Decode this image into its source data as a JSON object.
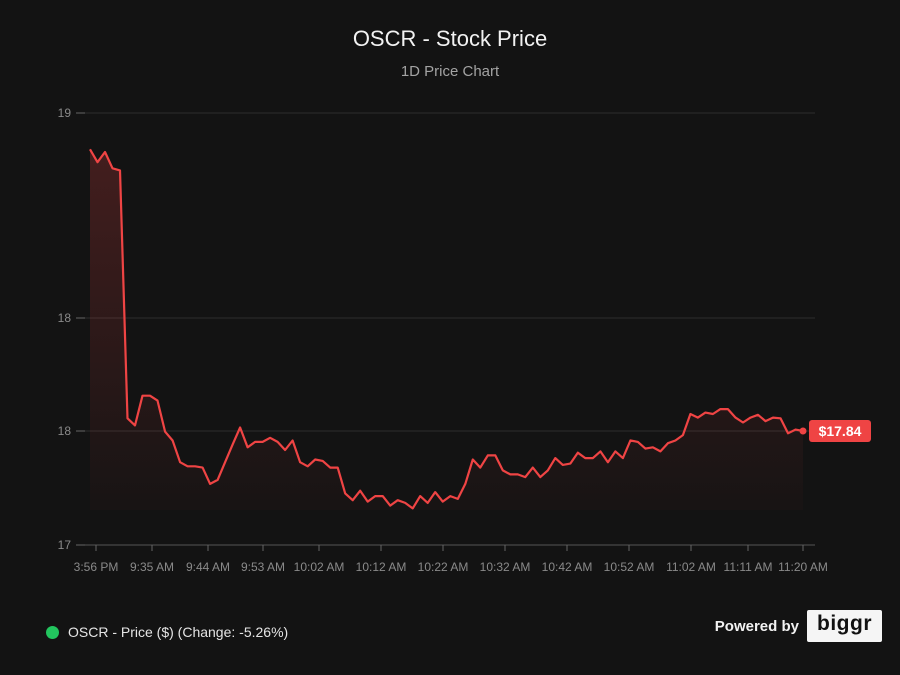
{
  "header": {
    "title": "OSCR - Stock Price",
    "subtitle": "1D Price Chart"
  },
  "chart_data": {
    "type": "area",
    "title": "OSCR - Stock Price",
    "subtitle": "1D Price Chart",
    "xlabel": "",
    "ylabel": "",
    "ylim": [
      17,
      19
    ],
    "grid": true,
    "y_ticks": [
      {
        "value": 19,
        "label": "19"
      },
      {
        "value": 18,
        "label": "18"
      },
      {
        "value": 17.84,
        "label": "18"
      },
      {
        "value": 17,
        "label": "17"
      }
    ],
    "x_tick_labels": [
      "3:56 PM",
      "9:35 AM",
      "9:44 AM",
      "9:53 AM",
      "10:02 AM",
      "10:12 AM",
      "10:22 AM",
      "10:32 AM",
      "10:42 AM",
      "10:52 AM",
      "11:02 AM",
      "11:11 AM",
      "11:20 AM"
    ],
    "series": [
      {
        "name": "OSCR - Price ($)",
        "color": "#ef4444",
        "values": [
          18.823,
          18.76,
          18.81,
          18.73,
          18.72,
          17.858,
          17.848,
          17.89,
          17.89,
          17.883,
          17.835,
          17.77,
          17.61,
          17.58,
          17.58,
          17.57,
          17.45,
          17.48,
          17.61,
          17.74,
          17.845,
          17.72,
          17.76,
          17.76,
          17.79,
          17.76,
          17.7,
          17.77,
          17.61,
          17.58,
          17.63,
          17.62,
          17.57,
          17.57,
          17.38,
          17.33,
          17.4,
          17.32,
          17.36,
          17.36,
          17.29,
          17.33,
          17.31,
          17.27,
          17.36,
          17.31,
          17.39,
          17.32,
          17.36,
          17.34,
          17.45,
          17.63,
          17.57,
          17.66,
          17.66,
          17.55,
          17.52,
          17.52,
          17.5,
          17.57,
          17.5,
          17.55,
          17.64,
          17.59,
          17.6,
          17.68,
          17.64,
          17.64,
          17.69,
          17.61,
          17.69,
          17.64,
          17.77,
          17.76,
          17.71,
          17.72,
          17.69,
          17.75,
          17.77,
          17.81,
          17.864,
          17.859,
          17.866,
          17.864,
          17.871,
          17.871,
          17.859,
          17.852,
          17.859,
          17.863,
          17.854,
          17.859,
          17.858,
          17.823,
          17.842,
          17.84
        ]
      }
    ],
    "last_price_label": "$17.84"
  },
  "legend": {
    "label": "OSCR - Price ($) (Change: -5.26%)",
    "color": "#22c55e"
  },
  "footer": {
    "powered_by": "Powered by",
    "logo_text": "biggr"
  }
}
